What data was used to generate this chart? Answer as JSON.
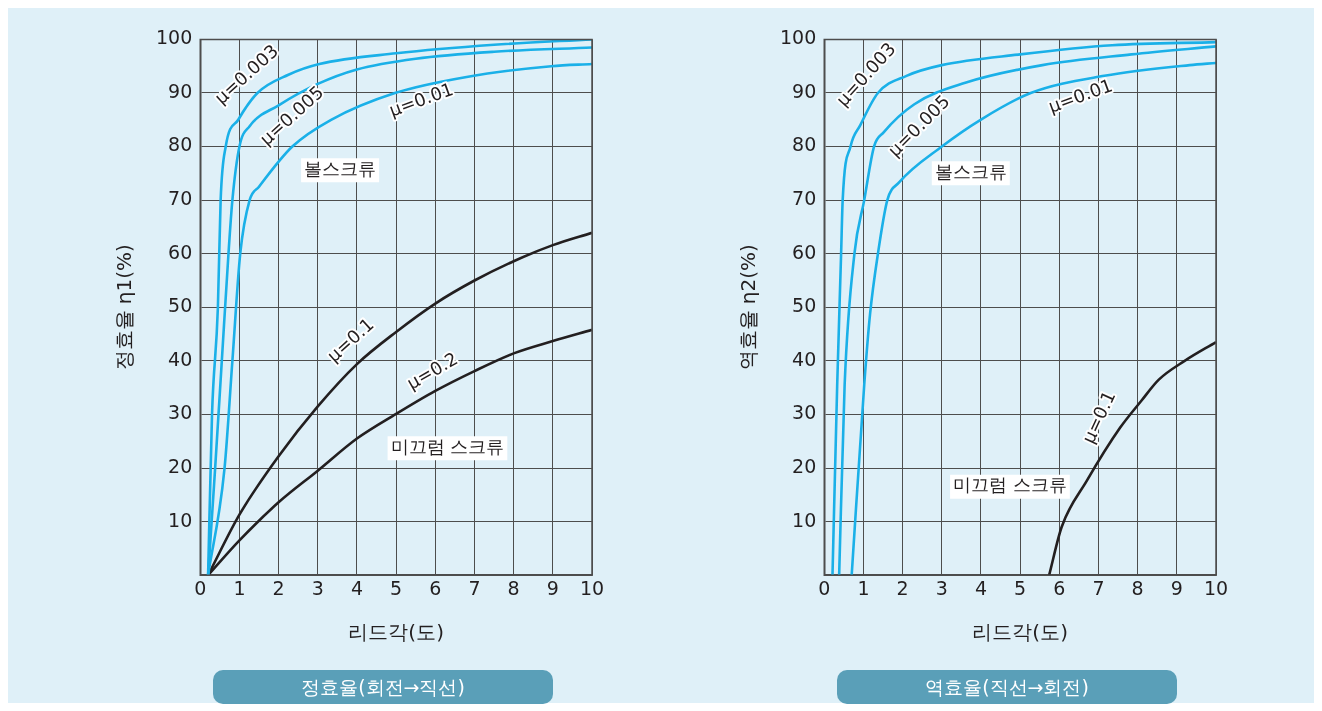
{
  "chart_data": [
    {
      "type": "line",
      "title": "정효율(회전→직선)",
      "xlabel": "리드각(도)",
      "ylabel": "정효율 η1(%)",
      "xlim": [
        0,
        10
      ],
      "xticks": [
        0,
        1,
        2,
        3,
        4,
        5,
        6,
        7,
        8,
        9,
        10
      ],
      "ylim": [
        0,
        100
      ],
      "yticks": [
        {
          "value": 0,
          "label": null
        },
        10,
        20,
        30,
        40,
        50,
        60,
        70,
        80,
        90,
        100
      ],
      "grid": true,
      "series": [
        {
          "name": "μ=0.003",
          "color": "#1ab0e8",
          "x": [
            0.2,
            0.3,
            0.45,
            0.52,
            0.65,
            0.97,
            1.46,
            2.25,
            3.04,
            5.0,
            7.5,
            10
          ],
          "values": [
            0,
            30,
            50,
            70,
            80,
            85,
            90,
            93.4,
            95.4,
            97.4,
            99,
            100
          ]
        },
        {
          "name": "μ=0.005",
          "color": "#1ab0e8",
          "x": [
            0.2,
            0.38,
            0.55,
            0.72,
            0.82,
            1.0,
            1.26,
            2.0,
            3.0,
            4.0,
            5.5,
            7.5,
            10
          ],
          "values": [
            0,
            20,
            40,
            60,
            70,
            80,
            83.8,
            87.7,
            91.7,
            94.4,
            96.4,
            97.7,
            98.5
          ]
        },
        {
          "name": "μ=0.01",
          "color": "#1ab0e8",
          "x": [
            0.2,
            0.62,
            0.82,
            1.02,
            1.26,
            1.5,
            2.35,
            3.34,
            4.97,
            6.8,
            8.96,
            10
          ],
          "values": [
            0,
            20,
            40,
            60,
            70,
            72.5,
            80,
            85,
            90,
            93,
            95,
            95.4
          ]
        },
        {
          "name": "μ=0.1",
          "color": "#231f20",
          "x": [
            0.2,
            1,
            2,
            3,
            4,
            5,
            6,
            7,
            8,
            9,
            10
          ],
          "values": [
            0,
            11.3,
            22.2,
            31.5,
            39.4,
            45.4,
            50.7,
            55,
            58.6,
            61.6,
            63.9
          ]
        },
        {
          "name": "μ=0.2",
          "color": "#231f20",
          "x": [
            0.2,
            1,
            2,
            3,
            4,
            5,
            6,
            7,
            8,
            9,
            10
          ],
          "values": [
            0,
            6.5,
            13.6,
            19.5,
            25.5,
            30.1,
            34.4,
            38.1,
            41.4,
            43.7,
            45.8
          ]
        }
      ],
      "annotations": [
        "볼스크류",
        "미끄럼 스크류"
      ]
    },
    {
      "type": "line",
      "title": "역효율(직선→회전)",
      "xlabel": "리드각(도)",
      "ylabel": "역효율 η2(%)",
      "xlim": [
        0,
        10
      ],
      "xticks": [
        0,
        1,
        2,
        3,
        4,
        5,
        6,
        7,
        8,
        9,
        10
      ],
      "ylim": [
        0,
        100
      ],
      "yticks": [
        {
          "value": 0,
          "label": null
        },
        10,
        20,
        30,
        40,
        50,
        60,
        70,
        80,
        90,
        100
      ],
      "grid": true,
      "series": [
        {
          "name": "μ=0.003",
          "color": "#1ab0e8",
          "x": [
            0.21,
            0.33,
            0.43,
            0.47,
            0.67,
            0.92,
            1.37,
            2.1,
            3.0,
            5.0,
            7.35,
            10
          ],
          "values": [
            0,
            35.5,
            60,
            70,
            80,
            84,
            90,
            93.2,
            95.2,
            97.2,
            98.9,
            99.5
          ]
        },
        {
          "name": "μ=0.005",
          "color": "#1ab0e8",
          "x": [
            0.38,
            0.52,
            0.77,
            1.02,
            1.27,
            1.51,
            2.3,
            3.6,
            5.57,
            7.84,
            10
          ],
          "values": [
            0,
            35.5,
            60,
            70,
            80,
            82.6,
            87.9,
            91.9,
            95.2,
            97.2,
            98.7
          ]
        },
        {
          "name": "μ=0.01",
          "color": "#1ab0e8",
          "x": [
            0.7,
            1.02,
            1.17,
            1.37,
            1.61,
            1.91,
            3.0,
            3.99,
            5.27,
            7.15,
            9.33,
            10
          ],
          "values": [
            0,
            35.5,
            48.8,
            60,
            70,
            73.3,
            80,
            85,
            90,
            93.2,
            95.2,
            95.6
          ]
        },
        {
          "name": "μ=0.1",
          "color": "#231f20",
          "x": [
            5.74,
            6.06,
            6.7,
            7.55,
            8.1,
            8.54,
            9.2,
            10
          ],
          "values": [
            0,
            9,
            17.6,
            27.5,
            32.6,
            36.5,
            40,
            43.5
          ]
        }
      ],
      "annotations": [
        "볼스크류",
        "미끄럼 스크류"
      ]
    }
  ]
}
